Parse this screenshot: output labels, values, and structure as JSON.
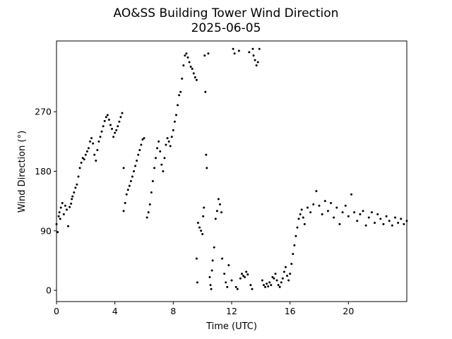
{
  "chart_data": {
    "type": "scatter",
    "title": "AO&SS Building Tower Wind Direction",
    "subtitle": "2025-06-05",
    "xlabel": "Time (UTC)",
    "ylabel": "Wind Direction (°)",
    "xlim": [
      0,
      24
    ],
    "ylim": [
      -17,
      377
    ],
    "x_ticks": [
      0,
      4,
      8,
      12,
      16,
      20
    ],
    "y_ticks": [
      0,
      90,
      180,
      270
    ],
    "grid": false,
    "legend": "none",
    "marker_color": "#000000",
    "series": [
      {
        "points": [
          [
            0.0,
            100
          ],
          [
            0.08,
            88
          ],
          [
            0.15,
            112
          ],
          [
            0.2,
            118
          ],
          [
            0.25,
            108
          ],
          [
            0.3,
            125
          ],
          [
            0.4,
            132
          ],
          [
            0.5,
            115
          ],
          [
            0.6,
            128
          ],
          [
            0.7,
            122
          ],
          [
            0.8,
            97
          ],
          [
            0.9,
            126
          ],
          [
            1.0,
            131
          ],
          [
            1.05,
            138
          ],
          [
            1.1,
            142
          ],
          [
            1.2,
            148
          ],
          [
            1.3,
            155
          ],
          [
            1.4,
            160
          ],
          [
            1.5,
            172
          ],
          [
            1.6,
            185
          ],
          [
            1.7,
            193
          ],
          [
            1.8,
            200
          ],
          [
            1.9,
            198
          ],
          [
            2.0,
            205
          ],
          [
            2.1,
            210
          ],
          [
            2.2,
            215
          ],
          [
            2.3,
            225
          ],
          [
            2.4,
            230
          ],
          [
            2.5,
            222
          ],
          [
            2.6,
            205
          ],
          [
            2.7,
            196
          ],
          [
            2.8,
            212
          ],
          [
            2.9,
            225
          ],
          [
            3.0,
            232
          ],
          [
            3.1,
            240
          ],
          [
            3.2,
            248
          ],
          [
            3.3,
            256
          ],
          [
            3.4,
            262
          ],
          [
            3.5,
            265
          ],
          [
            3.6,
            258
          ],
          [
            3.7,
            250
          ],
          [
            3.8,
            244
          ],
          [
            3.9,
            232
          ],
          [
            4.0,
            238
          ],
          [
            4.1,
            242
          ],
          [
            4.2,
            248
          ],
          [
            4.3,
            255
          ],
          [
            4.4,
            262
          ],
          [
            4.5,
            268
          ],
          [
            4.6,
            185
          ],
          [
            4.6,
            120
          ],
          [
            4.7,
            132
          ],
          [
            4.8,
            145
          ],
          [
            4.9,
            152
          ],
          [
            5.0,
            158
          ],
          [
            5.1,
            165
          ],
          [
            5.2,
            172
          ],
          [
            5.3,
            180
          ],
          [
            5.4,
            188
          ],
          [
            5.5,
            196
          ],
          [
            5.6,
            205
          ],
          [
            5.7,
            212
          ],
          [
            5.8,
            220
          ],
          [
            5.9,
            228
          ],
          [
            6.0,
            230
          ],
          [
            6.2,
            110
          ],
          [
            6.3,
            118
          ],
          [
            6.4,
            130
          ],
          [
            6.5,
            148
          ],
          [
            6.6,
            165
          ],
          [
            6.7,
            185
          ],
          [
            6.8,
            200
          ],
          [
            6.9,
            215
          ],
          [
            7.0,
            225
          ],
          [
            7.1,
            210
          ],
          [
            7.2,
            190
          ],
          [
            7.3,
            180
          ],
          [
            7.4,
            200
          ],
          [
            7.5,
            220
          ],
          [
            7.6,
            230
          ],
          [
            7.7,
            225
          ],
          [
            7.8,
            218
          ],
          [
            7.9,
            232
          ],
          [
            8.0,
            242
          ],
          [
            8.1,
            255
          ],
          [
            8.2,
            265
          ],
          [
            8.3,
            280
          ],
          [
            8.4,
            295
          ],
          [
            8.5,
            300
          ],
          [
            8.6,
            320
          ],
          [
            8.7,
            340
          ],
          [
            8.8,
            355
          ],
          [
            8.9,
            358
          ],
          [
            9.0,
            352
          ],
          [
            9.1,
            345
          ],
          [
            9.2,
            338
          ],
          [
            9.3,
            335
          ],
          [
            9.4,
            328
          ],
          [
            9.5,
            322
          ],
          [
            9.6,
            318
          ],
          [
            9.6,
            48
          ],
          [
            9.65,
            12
          ],
          [
            9.7,
            102
          ],
          [
            9.8,
            95
          ],
          [
            9.9,
            90
          ],
          [
            10.0,
            85
          ],
          [
            10.05,
            112
          ],
          [
            10.1,
            125
          ],
          [
            10.15,
            355
          ],
          [
            10.2,
            300
          ],
          [
            10.25,
            205
          ],
          [
            10.3,
            185
          ],
          [
            10.4,
            358
          ],
          [
            10.5,
            20
          ],
          [
            10.55,
            8
          ],
          [
            10.6,
            2
          ],
          [
            10.65,
            30
          ],
          [
            10.7,
            45
          ],
          [
            10.8,
            65
          ],
          [
            10.9,
            108
          ],
          [
            11.0,
            120
          ],
          [
            11.1,
            138
          ],
          [
            11.2,
            130
          ],
          [
            11.3,
            118
          ],
          [
            11.35,
            48
          ],
          [
            11.5,
            25
          ],
          [
            11.6,
            12
          ],
          [
            11.7,
            5
          ],
          [
            11.8,
            38
          ],
          [
            12.0,
            15
          ],
          [
            12.1,
            365
          ],
          [
            12.2,
            358
          ],
          [
            12.3,
            5
          ],
          [
            12.4,
            2
          ],
          [
            12.5,
            362
          ],
          [
            12.6,
            18
          ],
          [
            12.7,
            25
          ],
          [
            12.8,
            22
          ],
          [
            12.9,
            20
          ],
          [
            13.0,
            28
          ],
          [
            13.1,
            24
          ],
          [
            13.2,
            360
          ],
          [
            13.3,
            8
          ],
          [
            13.4,
            2
          ],
          [
            13.45,
            365
          ],
          [
            13.5,
            355
          ],
          [
            13.6,
            348
          ],
          [
            13.7,
            340
          ],
          [
            13.8,
            345
          ],
          [
            13.9,
            365
          ],
          [
            14.1,
            15
          ],
          [
            14.2,
            8
          ],
          [
            14.3,
            5
          ],
          [
            14.4,
            10
          ],
          [
            14.5,
            6
          ],
          [
            14.6,
            12
          ],
          [
            14.7,
            8
          ],
          [
            14.8,
            20
          ],
          [
            14.9,
            18
          ],
          [
            15.0,
            25
          ],
          [
            15.1,
            15
          ],
          [
            15.2,
            8
          ],
          [
            15.3,
            5
          ],
          [
            15.4,
            12
          ],
          [
            15.5,
            18
          ],
          [
            15.6,
            28
          ],
          [
            15.7,
            35
          ],
          [
            15.8,
            22
          ],
          [
            15.9,
            15
          ],
          [
            16.0,
            25
          ],
          [
            16.1,
            40
          ],
          [
            16.2,
            55
          ],
          [
            16.3,
            68
          ],
          [
            16.4,
            82
          ],
          [
            16.5,
            95
          ],
          [
            16.6,
            108
          ],
          [
            16.7,
            115
          ],
          [
            16.8,
            122
          ],
          [
            16.9,
            110
          ],
          [
            17.0,
            100
          ],
          [
            17.2,
            125
          ],
          [
            17.4,
            118
          ],
          [
            17.6,
            130
          ],
          [
            17.8,
            150
          ],
          [
            18.0,
            128
          ],
          [
            18.2,
            115
          ],
          [
            18.4,
            135
          ],
          [
            18.6,
            120
          ],
          [
            18.8,
            132
          ],
          [
            19.0,
            110
          ],
          [
            19.2,
            125
          ],
          [
            19.4,
            100
          ],
          [
            19.6,
            118
          ],
          [
            19.8,
            128
          ],
          [
            20.0,
            112
          ],
          [
            20.2,
            145
          ],
          [
            20.4,
            118
          ],
          [
            20.6,
            105
          ],
          [
            20.8,
            115
          ],
          [
            21.0,
            120
          ],
          [
            21.2,
            98
          ],
          [
            21.4,
            110
          ],
          [
            21.6,
            118
          ],
          [
            21.8,
            102
          ],
          [
            22.0,
            115
          ],
          [
            22.2,
            108
          ],
          [
            22.4,
            100
          ],
          [
            22.6,
            112
          ],
          [
            22.8,
            105
          ],
          [
            23.0,
            98
          ],
          [
            23.2,
            110
          ],
          [
            23.4,
            102
          ],
          [
            23.6,
            108
          ],
          [
            23.8,
            100
          ],
          [
            24.0,
            105
          ]
        ]
      }
    ]
  }
}
